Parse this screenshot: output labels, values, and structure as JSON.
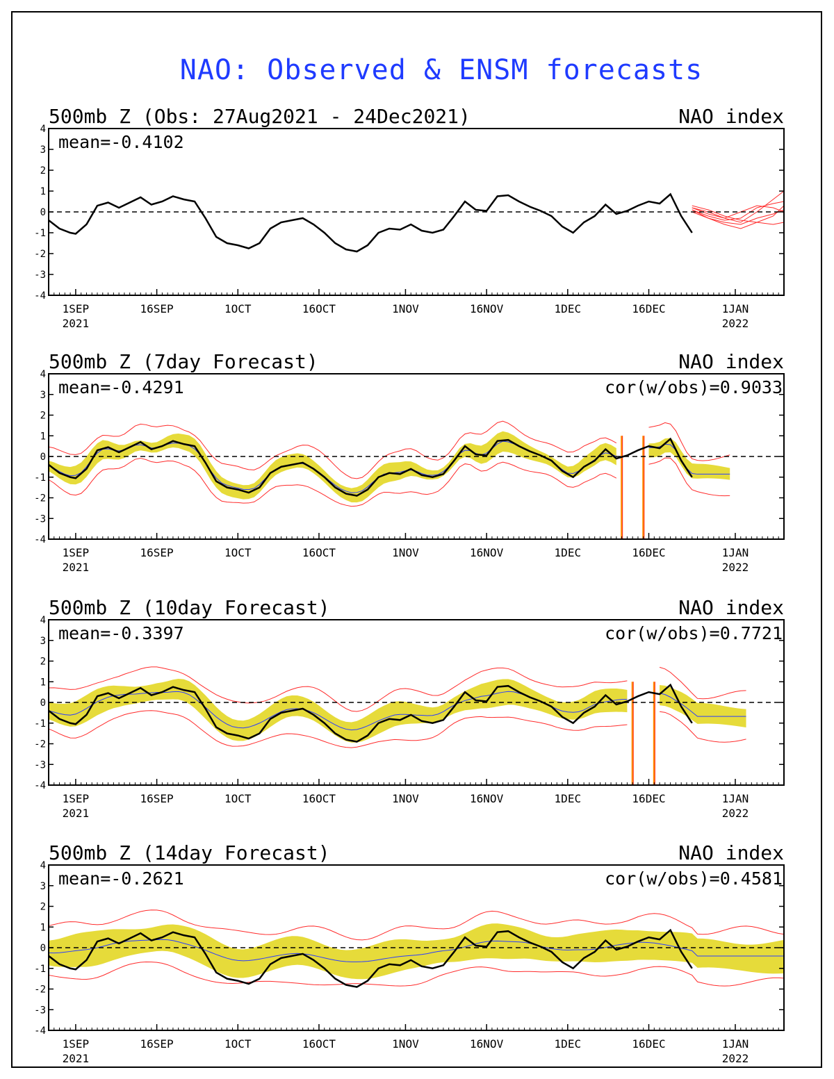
{
  "page": {
    "title": "NAO: Observed & ENSM forecasts",
    "colors": {
      "observed": "#000000",
      "ensemble_mean": "#2a3cff",
      "spread_band": "#e6db3a",
      "members": "#ff2a2a",
      "zero_line": "#000000",
      "title": "#1f3bff"
    }
  },
  "chart_data": [
    {
      "type": "line",
      "title": "500mb Z (Obs: 27Aug2021 - 24Dec2021)",
      "right_label": "NAO index",
      "mean_label": "mean=-0.4102",
      "cor_label": "",
      "ylim": [
        -4,
        4
      ],
      "yticks": [
        "4",
        "3",
        "2",
        "1",
        "0",
        "-1",
        "-2",
        "-3",
        "-4"
      ],
      "xlim": [
        "2021-08-27",
        "2022-01-10"
      ],
      "xticks": [
        {
          "date": "2021-09-01",
          "label": "1SEP",
          "sub": "2021"
        },
        {
          "date": "2021-09-16",
          "label": "16SEP",
          "sub": ""
        },
        {
          "date": "2021-10-01",
          "label": "1OCT",
          "sub": ""
        },
        {
          "date": "2021-10-16",
          "label": "16OCT",
          "sub": ""
        },
        {
          "date": "2021-11-01",
          "label": "1NOV",
          "sub": ""
        },
        {
          "date": "2021-11-16",
          "label": "16NOV",
          "sub": ""
        },
        {
          "date": "2021-12-01",
          "label": "1DEC",
          "sub": ""
        },
        {
          "date": "2021-12-16",
          "label": "16DEC",
          "sub": ""
        },
        {
          "date": "2022-01-01",
          "label": "1JAN",
          "sub": "2022"
        }
      ],
      "grid": false,
      "series": [
        {
          "role": "observed",
          "x": [
            "2021-08-27",
            "2021-08-29",
            "2021-08-31",
            "2021-09-01",
            "2021-09-03",
            "2021-09-05",
            "2021-09-07",
            "2021-09-09",
            "2021-09-11",
            "2021-09-13",
            "2021-09-15",
            "2021-09-17",
            "2021-09-19",
            "2021-09-21",
            "2021-09-23",
            "2021-09-25",
            "2021-09-27",
            "2021-09-29",
            "2021-10-01",
            "2021-10-03",
            "2021-10-05",
            "2021-10-07",
            "2021-10-09",
            "2021-10-11",
            "2021-10-13",
            "2021-10-15",
            "2021-10-17",
            "2021-10-19",
            "2021-10-21",
            "2021-10-23",
            "2021-10-25",
            "2021-10-27",
            "2021-10-29",
            "2021-10-31",
            "2021-11-02",
            "2021-11-04",
            "2021-11-06",
            "2021-11-08",
            "2021-11-10",
            "2021-11-12",
            "2021-11-14",
            "2021-11-16",
            "2021-11-18",
            "2021-11-20",
            "2021-11-22",
            "2021-11-24",
            "2021-11-26",
            "2021-11-28",
            "2021-11-30",
            "2021-12-02",
            "2021-12-04",
            "2021-12-06",
            "2021-12-08",
            "2021-12-10",
            "2021-12-12",
            "2021-12-14",
            "2021-12-16",
            "2021-12-18",
            "2021-12-20",
            "2021-12-22",
            "2021-12-24"
          ],
          "y": [
            -0.4,
            -0.8,
            -1.0,
            -1.05,
            -0.6,
            0.3,
            0.45,
            0.2,
            0.45,
            0.7,
            0.35,
            0.5,
            0.75,
            0.6,
            0.5,
            -0.3,
            -1.2,
            -1.5,
            -1.6,
            -1.75,
            -1.5,
            -0.8,
            -0.5,
            -0.4,
            -0.3,
            -0.6,
            -1.0,
            -1.5,
            -1.8,
            -1.9,
            -1.6,
            -1.0,
            -0.8,
            -0.85,
            -0.6,
            -0.9,
            -1.0,
            -0.85,
            -0.2,
            0.5,
            0.1,
            0.05,
            0.75,
            0.8,
            0.5,
            0.25,
            0.05,
            -0.2,
            -0.7,
            -1.0,
            -0.5,
            -0.2,
            0.35,
            -0.1,
            0.05,
            0.3,
            0.5,
            0.4,
            0.85,
            -0.2,
            -1.0
          ]
        },
        {
          "role": "members",
          "x": [
            "2021-12-24",
            "2021-12-27",
            "2021-12-30",
            "2022-01-02",
            "2022-01-05",
            "2022-01-08",
            "2022-01-10"
          ],
          "y_members": [
            [
              0.2,
              0.0,
              -0.3,
              -0.5,
              0.0,
              0.6,
              1.0
            ],
            [
              0.1,
              -0.2,
              -0.4,
              -0.3,
              0.2,
              0.4,
              0.5
            ],
            [
              0.0,
              -0.3,
              -0.5,
              -0.6,
              -0.3,
              -0.1,
              0.1
            ],
            [
              0.3,
              0.1,
              -0.2,
              -0.4,
              -0.5,
              -0.6,
              -0.5
            ],
            [
              0.2,
              -0.1,
              -0.3,
              0.0,
              0.3,
              0.2,
              0.0
            ],
            [
              0.1,
              -0.3,
              -0.6,
              -0.8,
              -0.5,
              -0.2,
              0.3
            ]
          ]
        }
      ]
    },
    {
      "type": "line",
      "title": "500mb Z (7day Forecast)",
      "right_label": "NAO index",
      "mean_label": "mean=-0.4291",
      "cor_label": "cor(w/obs)=0.9033",
      "ylim": [
        -4,
        4
      ],
      "yticks": [
        "4",
        "3",
        "2",
        "1",
        "0",
        "-1",
        "-2",
        "-3",
        "-4"
      ],
      "xlim": [
        "2021-08-27",
        "2022-01-10"
      ],
      "xticks": [
        {
          "date": "2021-09-01",
          "label": "1SEP",
          "sub": "2021"
        },
        {
          "date": "2021-09-16",
          "label": "16SEP",
          "sub": ""
        },
        {
          "date": "2021-10-01",
          "label": "1OCT",
          "sub": ""
        },
        {
          "date": "2021-10-16",
          "label": "16OCT",
          "sub": ""
        },
        {
          "date": "2021-11-01",
          "label": "1NOV",
          "sub": ""
        },
        {
          "date": "2021-11-16",
          "label": "16NOV",
          "sub": ""
        },
        {
          "date": "2021-12-01",
          "label": "1DEC",
          "sub": ""
        },
        {
          "date": "2021-12-16",
          "label": "16DEC",
          "sub": ""
        },
        {
          "date": "2022-01-01",
          "label": "1JAN",
          "sub": "2022"
        }
      ],
      "grid": false,
      "forecast_end": "2021-12-31",
      "mean_offset": 0.0,
      "band_half": 0.35,
      "member_half": 0.85,
      "gap": [
        "2021-12-11",
        "2021-12-15"
      ]
    },
    {
      "type": "line",
      "title": "500mb Z (10day Forecast)",
      "right_label": "NAO index",
      "mean_label": "mean=-0.3397",
      "cor_label": "cor(w/obs)=0.7721",
      "ylim": [
        -4,
        4
      ],
      "yticks": [
        "4",
        "3",
        "2",
        "1",
        "0",
        "-1",
        "-2",
        "-3",
        "-4"
      ],
      "xlim": [
        "2021-08-27",
        "2022-01-10"
      ],
      "xticks": [
        {
          "date": "2021-09-01",
          "label": "1SEP",
          "sub": "2021"
        },
        {
          "date": "2021-09-16",
          "label": "16SEP",
          "sub": ""
        },
        {
          "date": "2021-10-01",
          "label": "1OCT",
          "sub": ""
        },
        {
          "date": "2021-10-16",
          "label": "16OCT",
          "sub": ""
        },
        {
          "date": "2021-11-01",
          "label": "1NOV",
          "sub": ""
        },
        {
          "date": "2021-11-16",
          "label": "16NOV",
          "sub": ""
        },
        {
          "date": "2021-12-01",
          "label": "1DEC",
          "sub": ""
        },
        {
          "date": "2021-12-16",
          "label": "16DEC",
          "sub": ""
        },
        {
          "date": "2022-01-01",
          "label": "1JAN",
          "sub": "2022"
        }
      ],
      "grid": false,
      "forecast_end": "2022-01-03",
      "mean_offset": 0.15,
      "band_half": 0.5,
      "member_half": 1.05,
      "gap": [
        "2021-12-13",
        "2021-12-17"
      ]
    },
    {
      "type": "line",
      "title": "500mb Z (14day Forecast)",
      "right_label": "NAO index",
      "mean_label": "mean=-0.2621",
      "cor_label": "cor(w/obs)=0.4581",
      "ylim": [
        -4,
        4
      ],
      "yticks": [
        "4",
        "3",
        "2",
        "1",
        "0",
        "-1",
        "-2",
        "-3",
        "-4"
      ],
      "xlim": [
        "2021-08-27",
        "2022-01-10"
      ],
      "xticks": [
        {
          "date": "2021-09-01",
          "label": "1SEP",
          "sub": "2021"
        },
        {
          "date": "2021-09-16",
          "label": "16SEP",
          "sub": ""
        },
        {
          "date": "2021-10-01",
          "label": "1OCT",
          "sub": ""
        },
        {
          "date": "2021-10-16",
          "label": "16OCT",
          "sub": ""
        },
        {
          "date": "2021-11-01",
          "label": "1NOV",
          "sub": ""
        },
        {
          "date": "2021-11-16",
          "label": "16NOV",
          "sub": ""
        },
        {
          "date": "2021-12-01",
          "label": "1DEC",
          "sub": ""
        },
        {
          "date": "2021-12-16",
          "label": "16DEC",
          "sub": ""
        },
        {
          "date": "2022-01-01",
          "label": "1JAN",
          "sub": "2022"
        }
      ],
      "grid": false,
      "forecast_end": "2022-01-10",
      "mean_offset": 0.3,
      "band_half": 0.7,
      "member_half": 1.25,
      "gap": []
    }
  ]
}
